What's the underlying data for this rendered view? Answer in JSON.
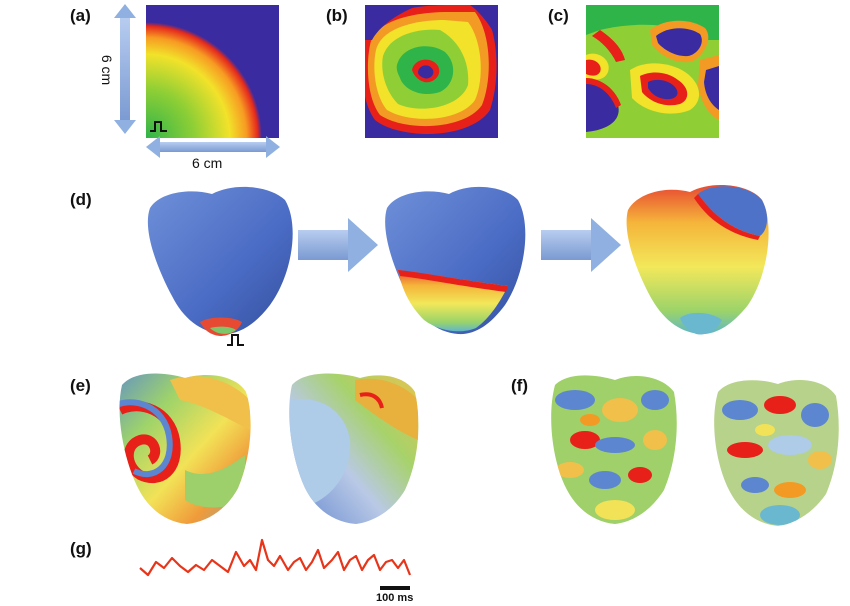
{
  "panels": {
    "a": "(a)",
    "b": "(b)",
    "c": "(c)",
    "d": "(d)",
    "e": "(e)",
    "f": "(f)",
    "g": "(g)"
  },
  "dimensions": {
    "height": "6 cm",
    "width": "6 cm"
  },
  "scale_bar": "100 ms",
  "colors": {
    "rest": "#3a2ba0",
    "wavefront": "#e8201a",
    "heart_rest": "#4f72c9",
    "arrow": "#8fb0e0",
    "trace": "#e8351a"
  }
}
